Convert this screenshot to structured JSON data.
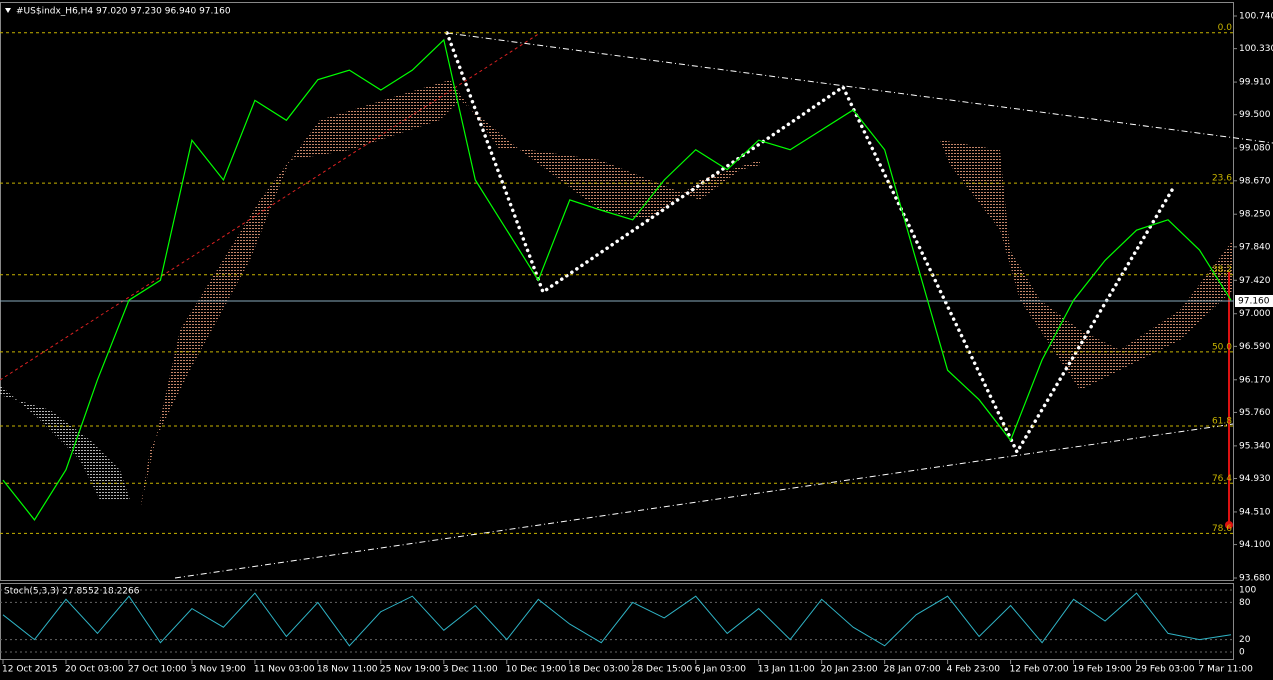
{
  "header": "#US$indx_H6,H4  97.020 97.230 96.940 97.160",
  "chart_data": {
    "type": "line",
    "categories": [
      "12 Oct 2015",
      null,
      "20 Oct 03:00",
      null,
      "27 Oct 10:00",
      null,
      "3 Nov 19:00",
      null,
      "11 Nov 03:00",
      null,
      "18 Nov 11:00",
      null,
      "25 Nov 19:00",
      null,
      "3 Dec 11:00",
      null,
      "10 Dec 19:00",
      null,
      "18 Dec 03:00",
      null,
      "28 Dec 15:00",
      null,
      "6 Jan 03:00",
      null,
      "13 Jan 11:00",
      null,
      "20 Jan 23:00",
      null,
      "28 Jan 07:00",
      null,
      "4 Feb 23:00",
      null,
      "12 Feb 07:00",
      null,
      "19 Feb 19:00",
      null,
      "29 Feb 03:00",
      null,
      "7 Mar 11:00",
      null
    ],
    "series": [
      {
        "color": "#00ff00",
        "values": [
          94.91,
          94.41,
          95.04,
          96.17,
          97.17,
          97.42,
          99.18,
          98.68,
          99.68,
          99.43,
          99.94,
          100.06,
          99.81,
          100.06,
          100.44,
          98.68,
          98.05,
          97.42,
          98.43,
          98.3,
          98.18,
          98.68,
          99.06,
          98.81,
          99.18,
          99.06,
          99.31,
          99.56,
          99.06,
          97.67,
          96.29,
          95.92,
          95.41,
          96.42,
          97.17,
          97.67,
          98.05,
          98.18,
          97.8,
          97.17
        ]
      }
    ],
    "ylim": [
      93.655,
      100.916
    ],
    "yticks": [
      {
        "value": 100.74,
        "label": "100.740"
      },
      {
        "value": 100.33,
        "label": "100.330"
      },
      {
        "value": 99.91,
        "label": "99.910"
      },
      {
        "value": 99.5,
        "label": "99.500"
      },
      {
        "value": 99.08,
        "label": "99.080"
      },
      {
        "value": 98.67,
        "label": "98.670"
      },
      {
        "value": 98.25,
        "label": "98.250"
      },
      {
        "value": 97.84,
        "label": "97.840"
      },
      {
        "value": 97.42,
        "label": "97.420"
      },
      {
        "value": 97.0,
        "label": "97.000"
      },
      {
        "value": 96.59,
        "label": "96.590"
      },
      {
        "value": 96.17,
        "label": "96.170"
      },
      {
        "value": 95.76,
        "label": "95.760"
      },
      {
        "value": 95.34,
        "label": "95.340"
      },
      {
        "value": 94.93,
        "label": "94.930"
      },
      {
        "value": 94.51,
        "label": "94.510"
      },
      {
        "value": 94.1,
        "label": "94.100"
      },
      {
        "value": 93.68,
        "label": "93.680"
      }
    ],
    "current_price": {
      "value": 97.16,
      "label": "97.160"
    },
    "fib_levels": [
      {
        "level": "0.0",
        "value": 100.53
      },
      {
        "level": "23.6",
        "value": 98.64
      },
      {
        "level": "38.2",
        "value": 97.49
      },
      {
        "level": "50.0",
        "value": 96.52
      },
      {
        "level": "61.8",
        "value": 95.59
      },
      {
        "level": "76.4",
        "value": 94.87
      },
      {
        "level": "78.6",
        "value": 94.24
      }
    ],
    "stoch": {
      "title": "Stoch(5,3,3) 27.8552 18.2266",
      "color": "#2fb3c5",
      "ylim": [
        0,
        100
      ],
      "yticks": [
        100,
        80,
        20,
        0
      ],
      "values": [
        60,
        20,
        85,
        30,
        90,
        15,
        70,
        40,
        95,
        25,
        80,
        10,
        65,
        90,
        35,
        75,
        20,
        85,
        45,
        15,
        80,
        55,
        90,
        30,
        70,
        20,
        85,
        40,
        10,
        60,
        90,
        25,
        75,
        15,
        85,
        50,
        95,
        30,
        20,
        27.9
      ]
    }
  }
}
